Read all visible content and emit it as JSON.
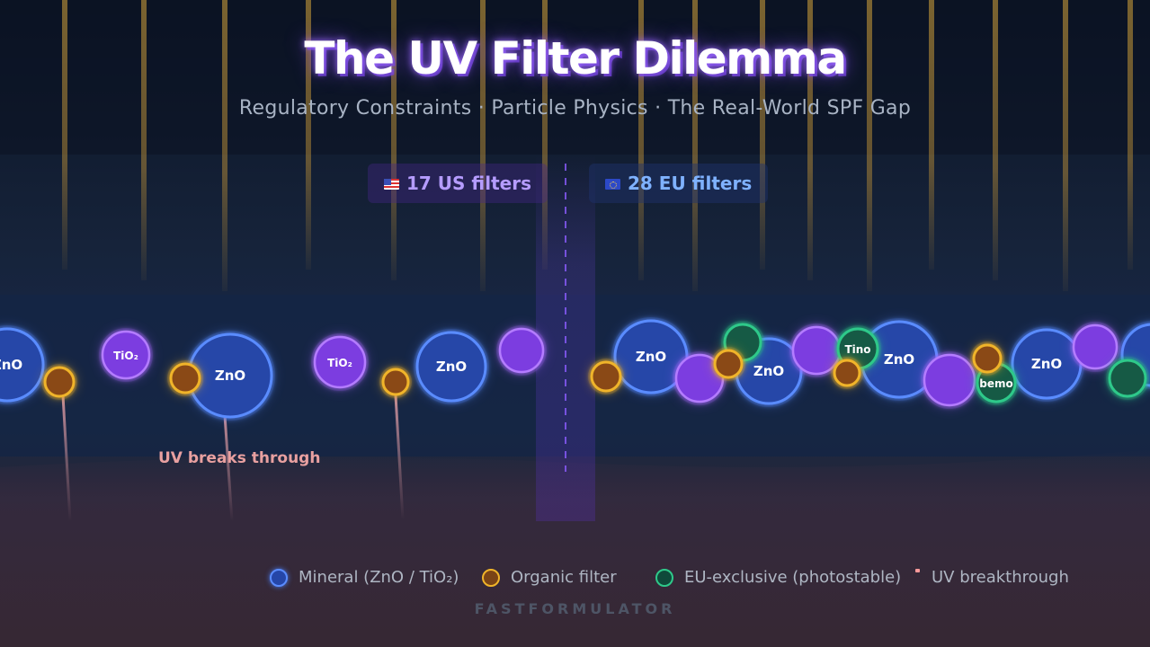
{
  "title": "The UV Filter Dilemma",
  "subtitle": "Regulatory Constraints · Particle Physics · The Real-World SPF Gap",
  "us_badge": "17 US filters",
  "eu_badge": "28 EU filters",
  "uv_note": "UV breaks through",
  "legend": {
    "mineral": "Mineral (ZnO / TiO₂)",
    "organic": "Organic filter",
    "eu_exclusive": "EU-exclusive (photostable)",
    "uv": "UV breakthrough"
  },
  "brand": "FASTFORMULATOR",
  "colors": {
    "mineral": "#4a7cf0",
    "mineral_tio2": "#7c3ee0",
    "organic": "#f0b429",
    "eu_exclusive": "#2ec98a",
    "uv": "#ff9a9a",
    "divider": "#7b4dff"
  },
  "particles_us": [
    {
      "label": "ZnO",
      "kind": "mineral"
    },
    {
      "label": "",
      "kind": "organic"
    },
    {
      "label": "TiO₂",
      "kind": "tio2"
    },
    {
      "label": "",
      "kind": "organic"
    },
    {
      "label": "ZnO",
      "kind": "mineral"
    },
    {
      "label": "TiO₂",
      "kind": "tio2"
    },
    {
      "label": "",
      "kind": "organic"
    },
    {
      "label": "ZnO",
      "kind": "mineral"
    },
    {
      "label": "",
      "kind": "tio2"
    }
  ],
  "particles_eu": [
    {
      "label": "",
      "kind": "organic"
    },
    {
      "label": "ZnO",
      "kind": "mineral"
    },
    {
      "label": "",
      "kind": "tio2"
    },
    {
      "label": "",
      "kind": "organic"
    },
    {
      "label": "ZnO",
      "kind": "mineral"
    },
    {
      "label": "",
      "kind": "eu"
    },
    {
      "label": "",
      "kind": "tio2"
    },
    {
      "label": "",
      "kind": "organic"
    },
    {
      "label": "ZnO",
      "kind": "mineral"
    },
    {
      "label": "Tino",
      "kind": "eu"
    },
    {
      "label": "",
      "kind": "tio2"
    },
    {
      "label": "",
      "kind": "organic"
    },
    {
      "label": "bemo",
      "kind": "eu"
    },
    {
      "label": "ZnO",
      "kind": "mineral"
    },
    {
      "label": "",
      "kind": "tio2"
    },
    {
      "label": "",
      "kind": "eu"
    },
    {
      "label": "",
      "kind": "mineral"
    }
  ]
}
